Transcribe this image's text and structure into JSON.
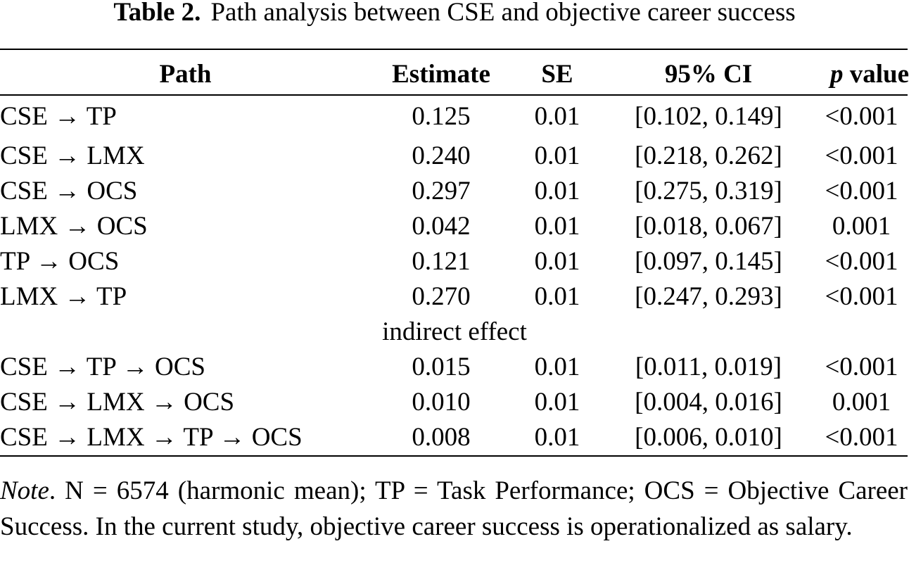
{
  "caption": {
    "label": "Table 2.",
    "title": "Path analysis between CSE and objective career success"
  },
  "table": {
    "headers": {
      "path": "Path",
      "estimate": "Estimate",
      "se": "SE",
      "ci": "95% CI",
      "p_italic": "p",
      "p_rest": " value"
    },
    "rows": [
      {
        "path": "CSE → TP",
        "estimate": "0.125",
        "se": "0.01",
        "ci": "[0.102, 0.149]",
        "p": "<0.001"
      },
      {
        "path": "CSE → LMX",
        "estimate": "0.240",
        "se": "0.01",
        "ci": "[0.218, 0.262]",
        "p": "<0.001"
      },
      {
        "path": "CSE → OCS",
        "estimate": "0.297",
        "se": "0.01",
        "ci": "[0.275, 0.319]",
        "p": "<0.001"
      },
      {
        "path": "LMX → OCS",
        "estimate": "0.042",
        "se": "0.01",
        "ci": "[0.018, 0.067]",
        "p": "0.001"
      },
      {
        "path": "TP → OCS",
        "estimate": "0.121",
        "se": "0.01",
        "ci": "[0.097, 0.145]",
        "p": "<0.001"
      },
      {
        "path": "LMX → TP",
        "estimate": "0.270",
        "se": "0.01",
        "ci": "[0.247, 0.293]",
        "p": "<0.001"
      }
    ],
    "group_label": "indirect effect",
    "indirect_rows": [
      {
        "path": "CSE → TP → OCS",
        "estimate": "0.015",
        "se": "0.01",
        "ci": "[0.011, 0.019]",
        "p": "<0.001"
      },
      {
        "path": "CSE → LMX → OCS",
        "estimate": "0.010",
        "se": "0.01",
        "ci": "[0.004, 0.016]",
        "p": "0.001"
      },
      {
        "path": "CSE → LMX → TP → OCS",
        "estimate": "0.008",
        "se": "0.01",
        "ci": "[0.006, 0.010]",
        "p": "<0.001"
      }
    ]
  },
  "note": {
    "label": "Note",
    "text": ". N = 6574 (harmonic mean); TP = Task Performance; OCS = Objective Career Success. In the current study, objective career success is operationalized as salary."
  }
}
